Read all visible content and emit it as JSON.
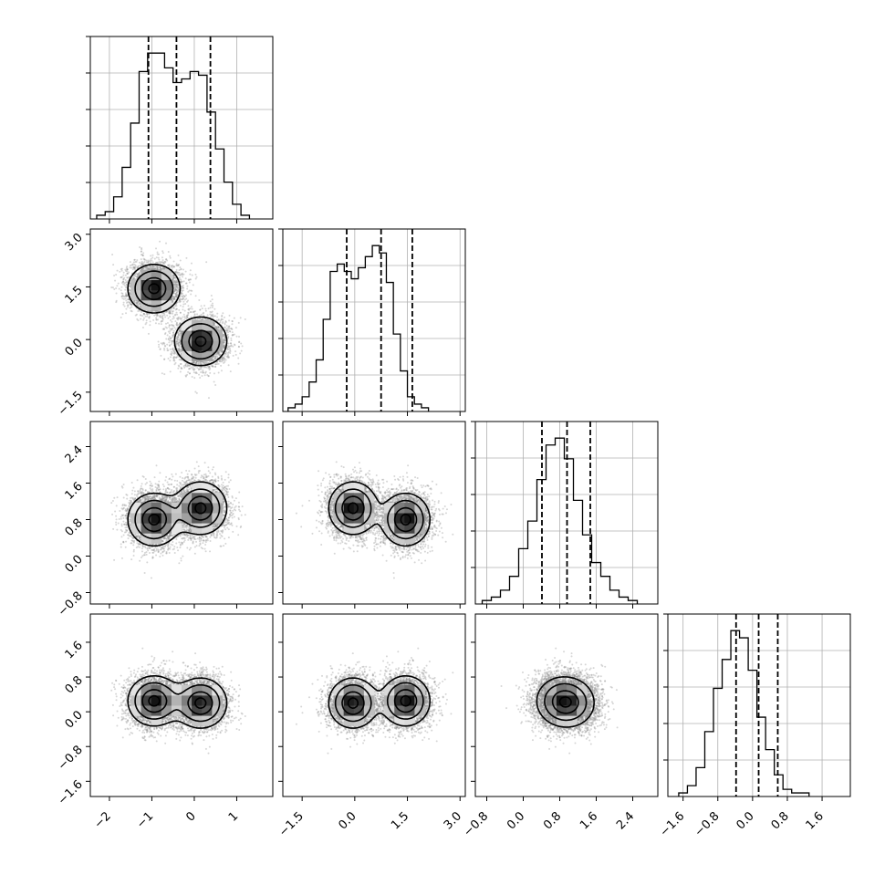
{
  "chart_data": {
    "type": "corner",
    "grid": true,
    "parameters": [
      {
        "ticks": [
          -2,
          -1,
          0,
          1
        ],
        "tick_labels": [
          "−2",
          "−1",
          "0",
          "1"
        ],
        "range": [
          -2.45,
          1.85
        ]
      },
      {
        "ticks": [
          -1.5,
          0.0,
          1.5,
          3.0
        ],
        "tick_labels": [
          "−1.5",
          "0.0",
          "1.5",
          "3.0"
        ],
        "range": [
          -2.05,
          3.15
        ]
      },
      {
        "ticks": [
          -0.8,
          0.0,
          0.8,
          1.6,
          2.4
        ],
        "tick_labels": [
          "−0.8",
          "0.0",
          "0.8",
          "1.6",
          "2.4"
        ],
        "range": [
          -1.05,
          2.95
        ]
      },
      {
        "ticks": [
          -1.6,
          -0.8,
          0.0,
          0.8,
          1.6
        ],
        "tick_labels": [
          "−1.6",
          "−0.8",
          "0.0",
          "0.8",
          "1.6"
        ],
        "range": [
          -1.95,
          2.25
        ]
      }
    ],
    "quantiles": [
      [
        -1.08,
        -0.42,
        0.38
      ],
      [
        -0.23,
        0.75,
        1.64
      ],
      [
        0.41,
        0.96,
        1.47
      ],
      [
        -0.38,
        0.14,
        0.58
      ]
    ],
    "histograms": [
      {
        "edges_start": -2.3,
        "bin_width": 0.2,
        "counts": [
          1,
          2,
          6,
          14,
          26,
          40,
          45,
          45,
          41,
          37,
          38,
          40,
          39,
          29,
          19,
          10,
          4,
          1
        ]
      },
      {
        "edges_start": -1.9,
        "bin_width": 0.2,
        "counts": [
          1,
          2,
          4,
          8,
          14,
          25,
          38,
          40,
          38,
          36,
          39,
          42,
          45,
          43,
          35,
          21,
          11,
          4,
          2,
          1
        ]
      },
      {
        "edges_start": -0.9,
        "bin_width": 0.2,
        "counts": [
          1,
          2,
          4,
          8,
          16,
          24,
          36,
          46,
          48,
          42,
          30,
          20,
          12,
          8,
          4,
          2,
          1
        ]
      },
      {
        "edges_start": -1.7,
        "bin_width": 0.2,
        "counts": [
          1,
          3,
          8,
          18,
          30,
          38,
          46,
          44,
          35,
          22,
          13,
          6,
          2,
          1,
          1
        ]
      }
    ],
    "mixture_components": [
      {
        "mean": [
          -0.95,
          1.45,
          0.8,
          0.25
        ],
        "sd": [
          0.32,
          0.36,
          0.3,
          0.3
        ]
      },
      {
        "mean": [
          0.15,
          -0.05,
          1.05,
          0.2
        ],
        "sd": [
          0.32,
          0.36,
          0.3,
          0.3
        ]
      }
    ],
    "contour_levels": [
      0.39,
      0.86,
      1.39,
      1.92
    ]
  }
}
